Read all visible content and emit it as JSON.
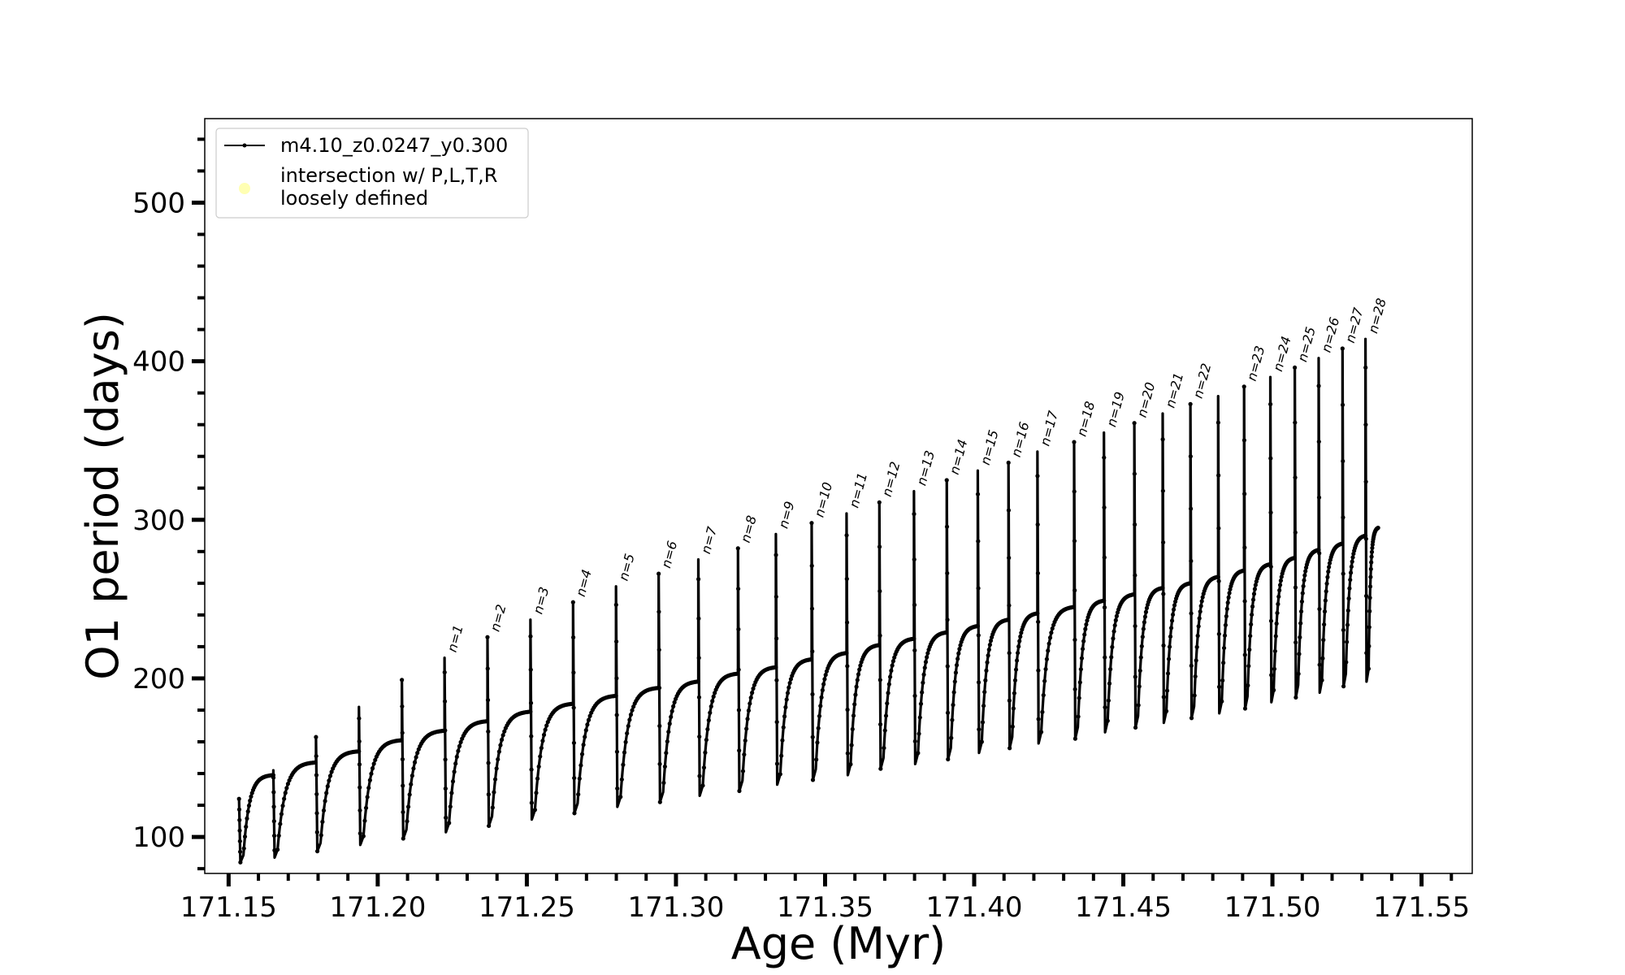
{
  "chart_data": {
    "type": "line",
    "xlabel": "Age (Myr)",
    "ylabel": "O1 period (days)",
    "xlim": [
      171.142,
      171.567
    ],
    "ylim": [
      77,
      553
    ],
    "x_ticks": [
      171.15,
      171.2,
      171.25,
      171.3,
      171.35,
      171.4,
      171.45,
      171.5,
      171.55
    ],
    "x_tick_labels": [
      "171.15",
      "171.20",
      "171.25",
      "171.30",
      "171.35",
      "171.40",
      "171.45",
      "171.50",
      "171.55"
    ],
    "y_ticks": [
      100,
      200,
      300,
      400,
      500
    ],
    "y_tick_labels": [
      "100",
      "200",
      "300",
      "400",
      "500"
    ],
    "grid": false,
    "legend": {
      "placement": "upper-left",
      "entries": [
        {
          "label": "m4.10_z0.0247_y0.300",
          "marker": "line-with-dots",
          "color": "#000000"
        },
        {
          "label": "intersection w/ P,L,T,R\nloosely defined",
          "marker": "circle",
          "color": "#ffffb3"
        }
      ]
    },
    "series": [
      {
        "name": "m4.10_z0.0247_y0.300",
        "color": "#000000",
        "pulses": [
          {
            "start_age": 171.1535,
            "peak": 124,
            "dip_age": 171.1548,
            "dip": 84,
            "end_age": 171.165,
            "end": 139
          },
          {
            "start_age": 171.165,
            "peak": 142,
            "dip_age": 171.1662,
            "dip": 87,
            "end_age": 171.1793,
            "end": 147
          },
          {
            "start_age": 171.1793,
            "peak": 163,
            "dip_age": 171.1806,
            "dip": 91,
            "end_age": 171.1937,
            "end": 154
          },
          {
            "start_age": 171.1937,
            "peak": 182,
            "dip_age": 171.195,
            "dip": 95,
            "end_age": 171.2081,
            "end": 161
          },
          {
            "start_age": 171.2081,
            "peak": 199,
            "dip_age": 171.2094,
            "dip": 99,
            "end_age": 171.2224,
            "end": 167
          },
          {
            "start_age": 171.2224,
            "peak": 213,
            "dip_age": 171.2237,
            "dip": 103,
            "end_age": 171.2368,
            "end": 173,
            "label": "n=1"
          },
          {
            "start_age": 171.2368,
            "peak": 226,
            "dip_age": 171.2381,
            "dip": 107,
            "end_age": 171.2512,
            "end": 179,
            "label": "n=2"
          },
          {
            "start_age": 171.2512,
            "peak": 237,
            "dip_age": 171.2525,
            "dip": 111,
            "end_age": 171.2655,
            "end": 184,
            "label": "n=3"
          },
          {
            "start_age": 171.2655,
            "peak": 248,
            "dip_age": 171.2668,
            "dip": 115,
            "end_age": 171.2799,
            "end": 189,
            "label": "n=4"
          },
          {
            "start_age": 171.2799,
            "peak": 258,
            "dip_age": 171.2812,
            "dip": 119,
            "end_age": 171.2942,
            "end": 194,
            "label": "n=5"
          },
          {
            "start_age": 171.2942,
            "peak": 266,
            "dip_age": 171.2955,
            "dip": 122,
            "end_age": 171.3075,
            "end": 198,
            "label": "n=6"
          },
          {
            "start_age": 171.3075,
            "peak": 275,
            "dip_age": 171.3088,
            "dip": 126,
            "end_age": 171.3208,
            "end": 203,
            "label": "n=7"
          },
          {
            "start_age": 171.3208,
            "peak": 282,
            "dip_age": 171.3221,
            "dip": 129,
            "end_age": 171.3335,
            "end": 207,
            "label": "n=8"
          },
          {
            "start_age": 171.3335,
            "peak": 291,
            "dip_age": 171.3348,
            "dip": 133,
            "end_age": 171.3455,
            "end": 212,
            "label": "n=9"
          },
          {
            "start_age": 171.3455,
            "peak": 298,
            "dip_age": 171.3467,
            "dip": 136,
            "end_age": 171.3572,
            "end": 216,
            "label": "n=10"
          },
          {
            "start_age": 171.3572,
            "peak": 304,
            "dip_age": 171.3584,
            "dip": 139,
            "end_age": 171.3682,
            "end": 221,
            "label": "n=11"
          },
          {
            "start_age": 171.3682,
            "peak": 311,
            "dip_age": 171.3694,
            "dip": 143,
            "end_age": 171.3798,
            "end": 225,
            "label": "n=12"
          },
          {
            "start_age": 171.3798,
            "peak": 318,
            "dip_age": 171.381,
            "dip": 146,
            "end_age": 171.3908,
            "end": 229,
            "label": "n=13"
          },
          {
            "start_age": 171.3908,
            "peak": 325,
            "dip_age": 171.392,
            "dip": 149,
            "end_age": 171.4012,
            "end": 233,
            "label": "n=14"
          },
          {
            "start_age": 171.4012,
            "peak": 331,
            "dip_age": 171.4024,
            "dip": 153,
            "end_age": 171.4115,
            "end": 237,
            "label": "n=15"
          },
          {
            "start_age": 171.4115,
            "peak": 336,
            "dip_age": 171.4126,
            "dip": 156,
            "end_age": 171.4212,
            "end": 241,
            "label": "n=16"
          },
          {
            "start_age": 171.4212,
            "peak": 343,
            "dip_age": 171.4223,
            "dip": 159,
            "end_age": 171.4335,
            "end": 245,
            "label": "n=17"
          },
          {
            "start_age": 171.4335,
            "peak": 349,
            "dip_age": 171.4346,
            "dip": 162,
            "end_age": 171.4435,
            "end": 249,
            "label": "n=18"
          },
          {
            "start_age": 171.4435,
            "peak": 355,
            "dip_age": 171.4446,
            "dip": 166,
            "end_age": 171.4537,
            "end": 253,
            "label": "n=19"
          },
          {
            "start_age": 171.4537,
            "peak": 361,
            "dip_age": 171.4548,
            "dip": 169,
            "end_age": 171.4632,
            "end": 257,
            "label": "n=20"
          },
          {
            "start_age": 171.4632,
            "peak": 367,
            "dip_age": 171.4643,
            "dip": 172,
            "end_age": 171.4725,
            "end": 260,
            "label": "n=21"
          },
          {
            "start_age": 171.4725,
            "peak": 373,
            "dip_age": 171.4736,
            "dip": 175,
            "end_age": 171.4818,
            "end": 264,
            "label": "n=22"
          },
          {
            "start_age": 171.4818,
            "peak": 378,
            "dip_age": 171.4829,
            "dip": 178,
            "end_age": 171.4905,
            "end": 268
          },
          {
            "start_age": 171.4905,
            "peak": 384,
            "dip_age": 171.4915,
            "dip": 181,
            "end_age": 171.4993,
            "end": 272,
            "label": "n=23"
          },
          {
            "start_age": 171.4993,
            "peak": 390,
            "dip_age": 171.5003,
            "dip": 185,
            "end_age": 171.5075,
            "end": 276,
            "label": "n=24"
          },
          {
            "start_age": 171.5075,
            "peak": 396,
            "dip_age": 171.5085,
            "dip": 188,
            "end_age": 171.5155,
            "end": 281,
            "label": "n=25"
          },
          {
            "start_age": 171.5155,
            "peak": 402,
            "dip_age": 171.5165,
            "dip": 191,
            "end_age": 171.5235,
            "end": 285,
            "label": "n=26"
          },
          {
            "start_age": 171.5235,
            "peak": 408,
            "dip_age": 171.5245,
            "dip": 195,
            "end_age": 171.5312,
            "end": 290,
            "label": "n=27"
          },
          {
            "start_age": 171.5312,
            "peak": 414,
            "dip_age": 171.5322,
            "dip": 198,
            "end_age": 171.5355,
            "end": 295,
            "label": "n=28"
          }
        ]
      }
    ]
  }
}
